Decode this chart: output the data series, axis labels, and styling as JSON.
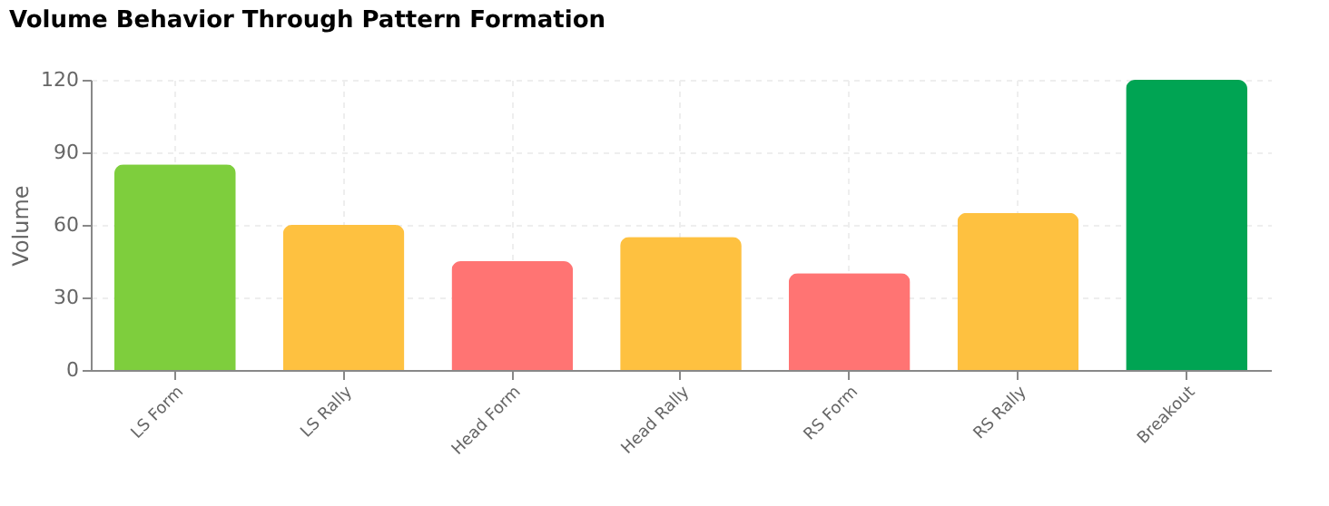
{
  "chart_data": {
    "type": "bar",
    "title": "Volume Behavior Through Pattern Formation",
    "ylabel": "Volume",
    "categories": [
      "LS Form",
      "LS Rally",
      "Head Form",
      "Head Rally",
      "RS Form",
      "RS Rally",
      "Breakout"
    ],
    "values": [
      85,
      60,
      45,
      55,
      40,
      65,
      120
    ],
    "colors": [
      "#7ece3d",
      "#fec140",
      "#ff7473",
      "#fec140",
      "#ff7473",
      "#fec140",
      "#00a453"
    ],
    "ylim": [
      0,
      120
    ],
    "yticks": [
      0,
      30,
      60,
      90,
      120
    ],
    "grid": true
  }
}
